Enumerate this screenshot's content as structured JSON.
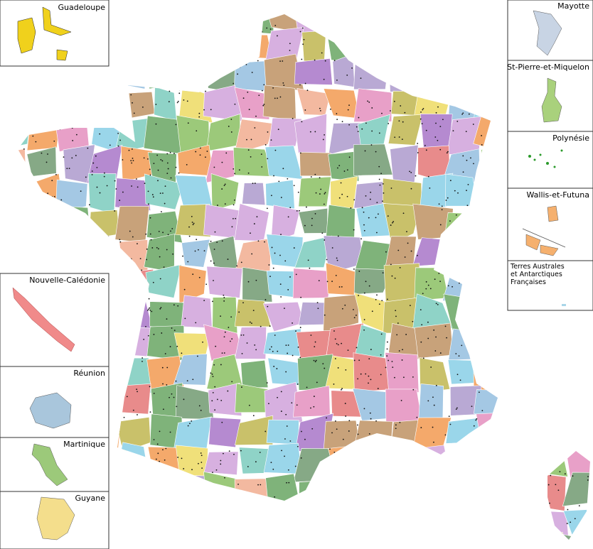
{
  "insets": [
    {
      "label": "Guadeloupe"
    },
    {
      "label": "Mayotte"
    },
    {
      "label": "St-Pierre-et-Miquelon"
    },
    {
      "label": "Polynésie"
    },
    {
      "label": "Wallis-et-Futuna"
    },
    {
      "label_lines": [
        "Terres Australes",
        "et Antarctiques",
        "Françaises"
      ]
    },
    {
      "label": "Nouvelle-Calédonie"
    },
    {
      "label": "Réunion"
    },
    {
      "label": "Martinique"
    },
    {
      "label": "Guyane"
    }
  ]
}
